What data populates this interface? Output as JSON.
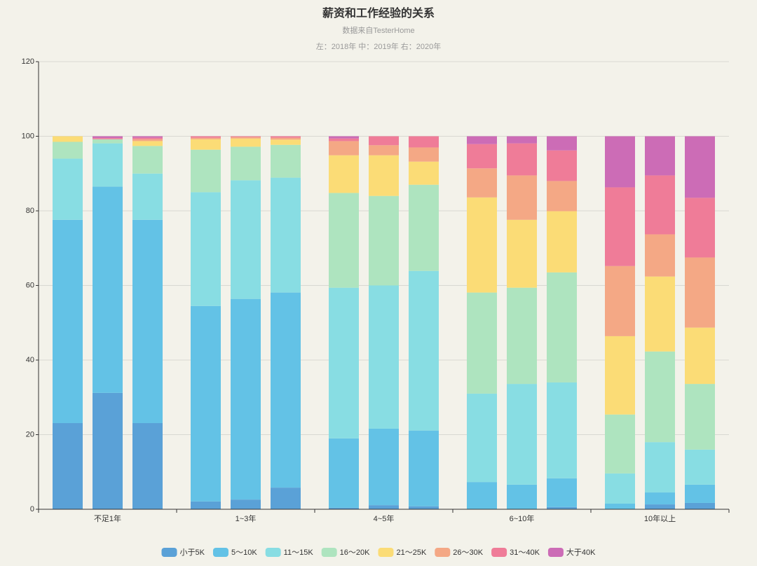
{
  "chart_data": {
    "type": "stacked_bar",
    "title": "薪资和工作经验的关系",
    "subtitle": "数据来自TesterHome",
    "annotation": "左：2018年  中：2019年  右：2020年",
    "categories": [
      null,
      "不足1年",
      null,
      null,
      "1~3年",
      null,
      null,
      "4~5年",
      null,
      null,
      "6~10年",
      null,
      null,
      "10年以上",
      null
    ],
    "ylim": [
      0,
      120
    ],
    "yticks": [
      0,
      20,
      40,
      60,
      80,
      100,
      120
    ],
    "grid": true,
    "legend": "bottom",
    "series": [
      {
        "name": "小于5K",
        "color": "#5aa1d7",
        "values": [
          23.1,
          31.2,
          23.1,
          2.1,
          2.6,
          5.8,
          0.4,
          1.1,
          0.8,
          0,
          0,
          0.6,
          0,
          1.3,
          1.7
        ]
      },
      {
        "name": "5～10K",
        "color": "#63c2e6",
        "values": [
          54.5,
          55.3,
          54.5,
          52.4,
          53.8,
          52.3,
          18.6,
          20.5,
          20.3,
          7.3,
          6.6,
          7.7,
          1.5,
          3.2,
          4.9
        ]
      },
      {
        "name": "11～15K",
        "color": "#88dde3",
        "values": [
          16.4,
          11.6,
          12.4,
          30.5,
          31.8,
          30.8,
          40.4,
          38.4,
          42.8,
          23.7,
          27.0,
          25.7,
          8.1,
          13.5,
          9.4
        ]
      },
      {
        "name": "16～20K",
        "color": "#aee4bf",
        "values": [
          4.5,
          1.1,
          7.4,
          11.4,
          9.0,
          8.8,
          25.4,
          24.0,
          23.1,
          27.1,
          25.8,
          29.5,
          15.8,
          24.3,
          17.6
        ]
      },
      {
        "name": "21～25K",
        "color": "#fbdc76",
        "values": [
          1.5,
          0,
          1.3,
          2.8,
          2.2,
          1.4,
          10.1,
          10.9,
          6.2,
          25.5,
          18.2,
          16.4,
          21.0,
          20.1,
          15.1
        ]
      },
      {
        "name": "26～30K",
        "color": "#f4a885",
        "values": [
          0,
          0,
          0.5,
          0.4,
          0.4,
          0.5,
          3.8,
          2.7,
          3.8,
          7.8,
          11.9,
          8.1,
          18.8,
          11.3,
          18.8
        ]
      },
      {
        "name": "31～40K",
        "color": "#ef7c98",
        "values": [
          0,
          0.3,
          0.4,
          0.4,
          0.2,
          0.4,
          0.7,
          2.4,
          3.0,
          6.5,
          8.6,
          8.2,
          21.1,
          15.8,
          16.0
        ]
      },
      {
        "name": "大于40K",
        "color": "#cc6cb6",
        "values": [
          0,
          0.5,
          0.4,
          0,
          0,
          0,
          0.6,
          0,
          0,
          2.1,
          1.9,
          3.8,
          13.7,
          10.5,
          16.5
        ]
      }
    ]
  }
}
